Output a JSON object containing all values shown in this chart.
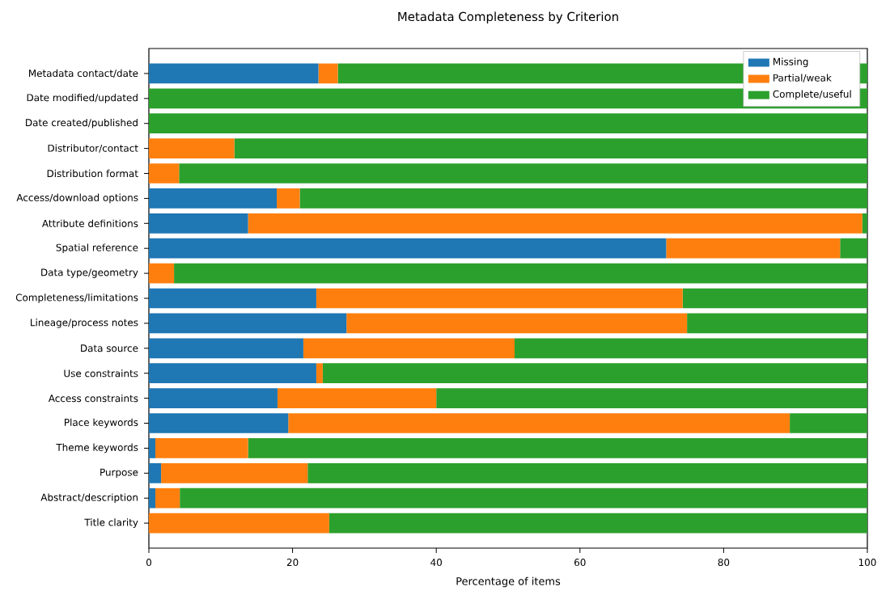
{
  "chart_data": {
    "type": "bar",
    "orientation": "horizontal",
    "stacked": true,
    "title": "Metadata Completeness by Criterion",
    "xlabel": "Percentage of items",
    "categories": [
      "Metadata contact/date",
      "Date modified/updated",
      "Date created/published",
      "Distributor/contact",
      "Distribution format",
      "Access/download options",
      "Attribute definitions",
      "Spatial reference",
      "Data type/geometry",
      "Completeness/limitations",
      "Lineage/process notes",
      "Data source",
      "Use constraints",
      "Access constraints",
      "Place keywords",
      "Theme keywords",
      "Purpose",
      "Abstract/description",
      "Title clarity"
    ],
    "series": [
      {
        "name": "Missing",
        "color": "#1f77b4",
        "values": [
          23.6,
          0,
          0,
          0,
          0,
          17.8,
          13.8,
          72.0,
          0,
          23.3,
          27.5,
          21.5,
          23.3,
          17.9,
          19.4,
          0.9,
          1.7,
          0.9,
          0
        ]
      },
      {
        "name": "Partial/weak",
        "color": "#ff7f0e",
        "values": [
          2.7,
          0,
          0,
          11.9,
          4.2,
          3.2,
          85.5,
          24.2,
          3.5,
          51.0,
          47.4,
          29.4,
          0.9,
          22.1,
          69.8,
          12.9,
          20.4,
          3.4,
          25.1
        ]
      },
      {
        "name": "Complete/useful",
        "color": "#2ca02c",
        "values": [
          73.7,
          100,
          100,
          88.1,
          95.8,
          79.0,
          0.7,
          3.8,
          96.5,
          25.7,
          25.1,
          49.1,
          75.8,
          60.0,
          10.8,
          86.2,
          77.9,
          95.7,
          74.9
        ]
      }
    ],
    "xlim": [
      0,
      100
    ],
    "xticks": [
      0,
      20,
      40,
      60,
      80,
      100
    ],
    "legend": "top right"
  }
}
